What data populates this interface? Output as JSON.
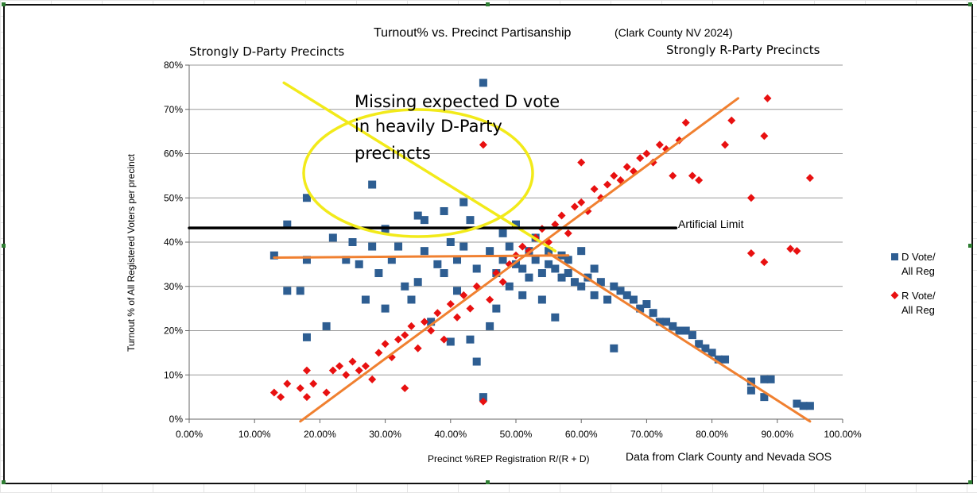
{
  "chart_data": {
    "type": "scatter",
    "title": "Turnout% vs. Precinct Partisanship",
    "subtitle": "(Clark County NV 2024)",
    "xlabel": "Precinct %REP Registration R/(R + D)",
    "ylabel": "Turnout % of All Registered Voters per precinct",
    "source_note": "Data from Clark County and Nevada SOS",
    "xlim": [
      0,
      1
    ],
    "ylim": [
      0,
      0.8
    ],
    "x_ticks": [
      "0.00%",
      "10.00%",
      "20.00%",
      "30.00%",
      "40.00%",
      "50.00%",
      "60.00%",
      "70.00%",
      "80.00%",
      "90.00%",
      "100.00%"
    ],
    "y_ticks": [
      "0%",
      "10%",
      "20%",
      "30%",
      "40%",
      "50%",
      "60%",
      "70%",
      "80%"
    ],
    "grid": "horizontal",
    "legend_position": "right",
    "series": [
      {
        "name": "D Vote/ All Reg",
        "marker": "square",
        "color": "#2e5e92",
        "points": [
          [
            0.13,
            0.37
          ],
          [
            0.15,
            0.44
          ],
          [
            0.15,
            0.29
          ],
          [
            0.18,
            0.5
          ],
          [
            0.18,
            0.36
          ],
          [
            0.17,
            0.29
          ],
          [
            0.18,
            0.185
          ],
          [
            0.21,
            0.21
          ],
          [
            0.22,
            0.41
          ],
          [
            0.24,
            0.36
          ],
          [
            0.25,
            0.4
          ],
          [
            0.26,
            0.35
          ],
          [
            0.27,
            0.27
          ],
          [
            0.28,
            0.53
          ],
          [
            0.28,
            0.39
          ],
          [
            0.29,
            0.33
          ],
          [
            0.3,
            0.25
          ],
          [
            0.3,
            0.43
          ],
          [
            0.31,
            0.36
          ],
          [
            0.32,
            0.39
          ],
          [
            0.33,
            0.3
          ],
          [
            0.34,
            0.27
          ],
          [
            0.35,
            0.46
          ],
          [
            0.35,
            0.31
          ],
          [
            0.36,
            0.38
          ],
          [
            0.36,
            0.45
          ],
          [
            0.37,
            0.22
          ],
          [
            0.38,
            0.35
          ],
          [
            0.39,
            0.33
          ],
          [
            0.39,
            0.47
          ],
          [
            0.4,
            0.175
          ],
          [
            0.4,
            0.4
          ],
          [
            0.41,
            0.29
          ],
          [
            0.41,
            0.36
          ],
          [
            0.42,
            0.39
          ],
          [
            0.42,
            0.49
          ],
          [
            0.43,
            0.45
          ],
          [
            0.43,
            0.18
          ],
          [
            0.44,
            0.34
          ],
          [
            0.44,
            0.13
          ],
          [
            0.45,
            0.76
          ],
          [
            0.45,
            0.05
          ],
          [
            0.46,
            0.21
          ],
          [
            0.46,
            0.38
          ],
          [
            0.47,
            0.25
          ],
          [
            0.47,
            0.33
          ],
          [
            0.48,
            0.42
          ],
          [
            0.48,
            0.36
          ],
          [
            0.49,
            0.3
          ],
          [
            0.49,
            0.39
          ],
          [
            0.5,
            0.35
          ],
          [
            0.5,
            0.44
          ],
          [
            0.51,
            0.34
          ],
          [
            0.51,
            0.28
          ],
          [
            0.52,
            0.38
          ],
          [
            0.52,
            0.32
          ],
          [
            0.53,
            0.36
          ],
          [
            0.53,
            0.41
          ],
          [
            0.54,
            0.33
          ],
          [
            0.54,
            0.27
          ],
          [
            0.55,
            0.38
          ],
          [
            0.55,
            0.35
          ],
          [
            0.56,
            0.34
          ],
          [
            0.56,
            0.23
          ],
          [
            0.57,
            0.37
          ],
          [
            0.57,
            0.32
          ],
          [
            0.58,
            0.33
          ],
          [
            0.58,
            0.36
          ],
          [
            0.59,
            0.31
          ],
          [
            0.6,
            0.38
          ],
          [
            0.6,
            0.3
          ],
          [
            0.61,
            0.32
          ],
          [
            0.62,
            0.34
          ],
          [
            0.62,
            0.28
          ],
          [
            0.63,
            0.31
          ],
          [
            0.64,
            0.27
          ],
          [
            0.65,
            0.3
          ],
          [
            0.65,
            0.16
          ],
          [
            0.66,
            0.29
          ],
          [
            0.67,
            0.28
          ],
          [
            0.68,
            0.27
          ],
          [
            0.69,
            0.25
          ],
          [
            0.7,
            0.26
          ],
          [
            0.71,
            0.24
          ],
          [
            0.72,
            0.22
          ],
          [
            0.73,
            0.22
          ],
          [
            0.74,
            0.21
          ],
          [
            0.75,
            0.2
          ],
          [
            0.76,
            0.2
          ],
          [
            0.77,
            0.19
          ],
          [
            0.78,
            0.17
          ],
          [
            0.79,
            0.16
          ],
          [
            0.8,
            0.15
          ],
          [
            0.81,
            0.135
          ],
          [
            0.82,
            0.135
          ],
          [
            0.86,
            0.085
          ],
          [
            0.86,
            0.065
          ],
          [
            0.88,
            0.09
          ],
          [
            0.89,
            0.09
          ],
          [
            0.88,
            0.05
          ],
          [
            0.93,
            0.035
          ],
          [
            0.94,
            0.03
          ],
          [
            0.95,
            0.03
          ]
        ]
      },
      {
        "name": "R Vote/ All Reg",
        "marker": "diamond",
        "color": "#e81010",
        "points": [
          [
            0.13,
            0.06
          ],
          [
            0.14,
            0.05
          ],
          [
            0.15,
            0.08
          ],
          [
            0.17,
            0.07
          ],
          [
            0.18,
            0.11
          ],
          [
            0.18,
            0.05
          ],
          [
            0.19,
            0.08
          ],
          [
            0.21,
            0.06
          ],
          [
            0.22,
            0.11
          ],
          [
            0.23,
            0.12
          ],
          [
            0.24,
            0.1
          ],
          [
            0.25,
            0.13
          ],
          [
            0.26,
            0.11
          ],
          [
            0.27,
            0.12
          ],
          [
            0.28,
            0.09
          ],
          [
            0.29,
            0.15
          ],
          [
            0.3,
            0.17
          ],
          [
            0.31,
            0.14
          ],
          [
            0.32,
            0.18
          ],
          [
            0.33,
            0.07
          ],
          [
            0.33,
            0.19
          ],
          [
            0.34,
            0.21
          ],
          [
            0.35,
            0.16
          ],
          [
            0.36,
            0.22
          ],
          [
            0.37,
            0.2
          ],
          [
            0.38,
            0.24
          ],
          [
            0.39,
            0.18
          ],
          [
            0.4,
            0.26
          ],
          [
            0.41,
            0.23
          ],
          [
            0.42,
            0.28
          ],
          [
            0.43,
            0.25
          ],
          [
            0.44,
            0.3
          ],
          [
            0.45,
            0.62
          ],
          [
            0.45,
            0.04
          ],
          [
            0.46,
            0.27
          ],
          [
            0.47,
            0.33
          ],
          [
            0.48,
            0.31
          ],
          [
            0.49,
            0.35
          ],
          [
            0.5,
            0.37
          ],
          [
            0.51,
            0.39
          ],
          [
            0.52,
            0.38
          ],
          [
            0.53,
            0.41
          ],
          [
            0.54,
            0.43
          ],
          [
            0.55,
            0.4
          ],
          [
            0.56,
            0.44
          ],
          [
            0.57,
            0.46
          ],
          [
            0.58,
            0.42
          ],
          [
            0.59,
            0.48
          ],
          [
            0.6,
            0.49
          ],
          [
            0.6,
            0.58
          ],
          [
            0.61,
            0.47
          ],
          [
            0.62,
            0.52
          ],
          [
            0.63,
            0.5
          ],
          [
            0.64,
            0.53
          ],
          [
            0.65,
            0.55
          ],
          [
            0.66,
            0.54
          ],
          [
            0.67,
            0.57
          ],
          [
            0.68,
            0.56
          ],
          [
            0.69,
            0.59
          ],
          [
            0.7,
            0.6
          ],
          [
            0.71,
            0.58
          ],
          [
            0.72,
            0.62
          ],
          [
            0.73,
            0.61
          ],
          [
            0.74,
            0.55
          ],
          [
            0.75,
            0.63
          ],
          [
            0.76,
            0.67
          ],
          [
            0.77,
            0.55
          ],
          [
            0.78,
            0.54
          ],
          [
            0.82,
            0.62
          ],
          [
            0.83,
            0.675
          ],
          [
            0.86,
            0.5
          ],
          [
            0.86,
            0.375
          ],
          [
            0.88,
            0.64
          ],
          [
            0.88,
            0.355
          ],
          [
            0.885,
            0.725
          ],
          [
            0.92,
            0.385
          ],
          [
            0.93,
            0.38
          ],
          [
            0.95,
            0.545
          ]
        ]
      }
    ],
    "overlays": {
      "trend_d_flat": {
        "color": "#f08030",
        "x": [
          0.13,
          0.58
        ],
        "y": [
          0.365,
          0.37
        ]
      },
      "trend_d_decline": {
        "color": "#f08030",
        "x": [
          0.55,
          0.95
        ],
        "y": [
          0.375,
          -0.005
        ]
      },
      "trend_r_rise": {
        "color": "#f08030",
        "x": [
          0.17,
          0.84
        ],
        "y": [
          -0.005,
          0.725
        ]
      },
      "yellow_slash": {
        "color": "#f2ea1a",
        "x": [
          0.145,
          0.56
        ],
        "y": [
          0.76,
          0.38
        ]
      },
      "artificial_limit": {
        "color": "#000000",
        "x": [
          0.0,
          0.745
        ],
        "y": [
          0.432,
          0.432
        ]
      }
    },
    "annotations": {
      "left_header": "Strongly D-Party Precincts",
      "right_header": "Strongly R-Party Precincts",
      "missing_vote_lines": [
        "Missing expected D vote",
        "in heavily D-Party",
        "precincts"
      ],
      "artificial_limit_label": "Artificial Limit"
    },
    "legend": [
      {
        "lines": [
          "D Vote/",
          "All Reg"
        ],
        "marker": "square",
        "color": "#2e5e92"
      },
      {
        "lines": [
          "R Vote/",
          "All Reg"
        ],
        "marker": "diamond",
        "color": "#e81010"
      }
    ]
  }
}
